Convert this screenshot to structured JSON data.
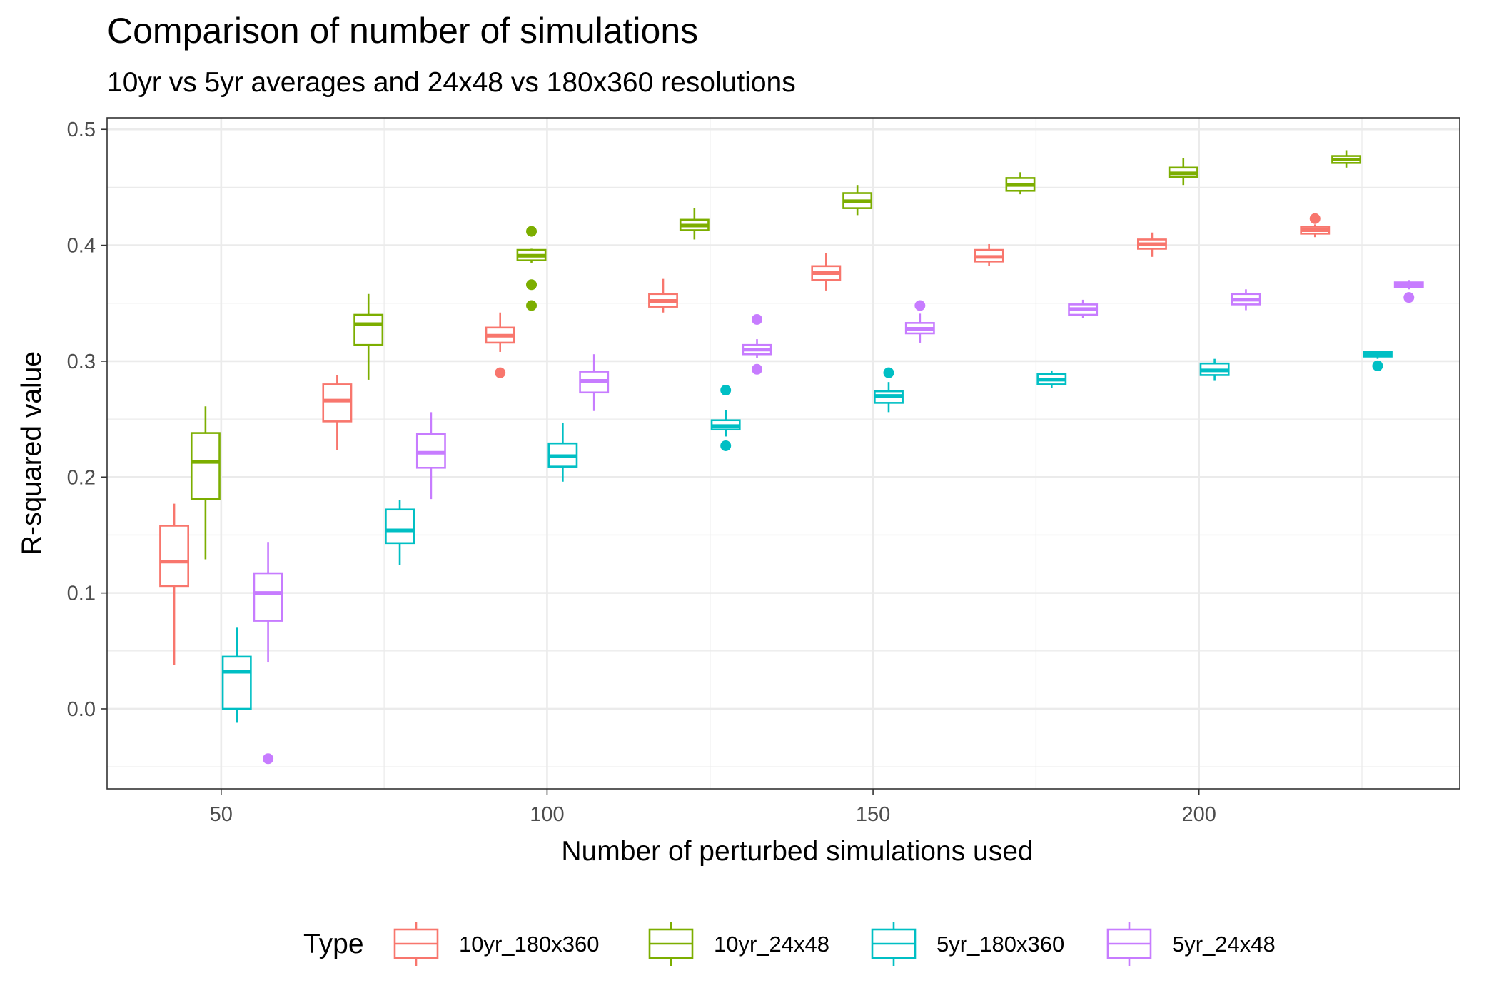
{
  "chart_data": {
    "type": "boxplot",
    "title": "Comparison of number of simulations",
    "subtitle": "10yr vs 5yr averages and 24x48 vs 180x360 resolutions",
    "xlabel": "Number of perturbed simulations used",
    "ylabel": "R-squared value",
    "xlim": [
      32.5,
      240
    ],
    "ylim": [
      -0.069,
      0.51
    ],
    "x_ticks": [
      50,
      100,
      150,
      200
    ],
    "x_tick_labels": [
      "50",
      "100",
      "150",
      "200"
    ],
    "y_ticks": [
      0.0,
      0.1,
      0.2,
      0.3,
      0.4,
      0.5
    ],
    "y_tick_labels": [
      "0.0",
      "0.1",
      "0.2",
      "0.3",
      "0.4",
      "0.5"
    ],
    "grid": true,
    "legend": {
      "title": "Type",
      "position": "bottom",
      "entries": [
        "10yr_180x360",
        "10yr_24x48",
        "5yr_180x360",
        "5yr_24x48"
      ]
    },
    "categories": [
      50,
      75,
      100,
      125,
      150,
      175,
      200,
      225
    ],
    "dodge_offsets": [
      -7.2,
      -2.4,
      2.4,
      7.2
    ],
    "box_width": 4.3,
    "series": [
      {
        "name": "10yr_180x360",
        "color": "#F8766D",
        "boxes": [
          {
            "x": 50,
            "lower": 0.038,
            "q1": 0.106,
            "median": 0.127,
            "q3": 0.158,
            "upper": 0.177,
            "outliers": []
          },
          {
            "x": 75,
            "lower": 0.223,
            "q1": 0.248,
            "median": 0.266,
            "q3": 0.28,
            "upper": 0.288,
            "outliers": []
          },
          {
            "x": 100,
            "lower": 0.308,
            "q1": 0.316,
            "median": 0.322,
            "q3": 0.329,
            "upper": 0.342,
            "outliers": [
              0.29
            ]
          },
          {
            "x": 125,
            "lower": 0.342,
            "q1": 0.347,
            "median": 0.352,
            "q3": 0.358,
            "upper": 0.371,
            "outliers": []
          },
          {
            "x": 150,
            "lower": 0.361,
            "q1": 0.37,
            "median": 0.376,
            "q3": 0.382,
            "upper": 0.393,
            "outliers": []
          },
          {
            "x": 175,
            "lower": 0.382,
            "q1": 0.386,
            "median": 0.39,
            "q3": 0.396,
            "upper": 0.401,
            "outliers": []
          },
          {
            "x": 200,
            "lower": 0.39,
            "q1": 0.397,
            "median": 0.401,
            "q3": 0.405,
            "upper": 0.411,
            "outliers": []
          },
          {
            "x": 225,
            "lower": 0.407,
            "q1": 0.41,
            "median": 0.413,
            "q3": 0.416,
            "upper": 0.418,
            "outliers": [
              0.423
            ]
          }
        ]
      },
      {
        "name": "10yr_24x48",
        "color": "#7CAE00",
        "boxes": [
          {
            "x": 50,
            "lower": 0.129,
            "q1": 0.181,
            "median": 0.213,
            "q3": 0.238,
            "upper": 0.261,
            "outliers": []
          },
          {
            "x": 75,
            "lower": 0.284,
            "q1": 0.314,
            "median": 0.332,
            "q3": 0.34,
            "upper": 0.358,
            "outliers": []
          },
          {
            "x": 100,
            "lower": 0.385,
            "q1": 0.387,
            "median": 0.391,
            "q3": 0.396,
            "upper": 0.397,
            "outliers": [
              0.412,
              0.366,
              0.348
            ]
          },
          {
            "x": 125,
            "lower": 0.405,
            "q1": 0.413,
            "median": 0.417,
            "q3": 0.422,
            "upper": 0.432,
            "outliers": []
          },
          {
            "x": 150,
            "lower": 0.426,
            "q1": 0.432,
            "median": 0.438,
            "q3": 0.445,
            "upper": 0.452,
            "outliers": []
          },
          {
            "x": 175,
            "lower": 0.444,
            "q1": 0.447,
            "median": 0.452,
            "q3": 0.458,
            "upper": 0.463,
            "outliers": []
          },
          {
            "x": 200,
            "lower": 0.452,
            "q1": 0.459,
            "median": 0.462,
            "q3": 0.467,
            "upper": 0.475,
            "outliers": []
          },
          {
            "x": 225,
            "lower": 0.467,
            "q1": 0.471,
            "median": 0.474,
            "q3": 0.477,
            "upper": 0.482,
            "outliers": []
          }
        ]
      },
      {
        "name": "5yr_180x360",
        "color": "#00BFC4",
        "boxes": [
          {
            "x": 50,
            "lower": -0.012,
            "q1": 0.0,
            "median": 0.032,
            "q3": 0.045,
            "upper": 0.07,
            "outliers": []
          },
          {
            "x": 75,
            "lower": 0.124,
            "q1": 0.143,
            "median": 0.154,
            "q3": 0.172,
            "upper": 0.18,
            "outliers": []
          },
          {
            "x": 100,
            "lower": 0.196,
            "q1": 0.209,
            "median": 0.218,
            "q3": 0.229,
            "upper": 0.247,
            "outliers": []
          },
          {
            "x": 125,
            "lower": 0.235,
            "q1": 0.241,
            "median": 0.244,
            "q3": 0.249,
            "upper": 0.258,
            "outliers": [
              0.275,
              0.227
            ]
          },
          {
            "x": 150,
            "lower": 0.256,
            "q1": 0.264,
            "median": 0.27,
            "q3": 0.274,
            "upper": 0.282,
            "outliers": [
              0.29
            ]
          },
          {
            "x": 175,
            "lower": 0.277,
            "q1": 0.28,
            "median": 0.284,
            "q3": 0.289,
            "upper": 0.292,
            "outliers": []
          },
          {
            "x": 200,
            "lower": 0.283,
            "q1": 0.288,
            "median": 0.292,
            "q3": 0.298,
            "upper": 0.302,
            "outliers": []
          },
          {
            "x": 225,
            "lower": 0.302,
            "q1": 0.304,
            "median": 0.306,
            "q3": 0.308,
            "upper": 0.309,
            "outliers": [
              0.296
            ]
          }
        ]
      },
      {
        "name": "5yr_24x48",
        "color": "#C77CFF",
        "boxes": [
          {
            "x": 50,
            "lower": 0.04,
            "q1": 0.076,
            "median": 0.1,
            "q3": 0.117,
            "upper": 0.144,
            "outliers": [
              -0.043
            ]
          },
          {
            "x": 75,
            "lower": 0.181,
            "q1": 0.208,
            "median": 0.221,
            "q3": 0.237,
            "upper": 0.256,
            "outliers": []
          },
          {
            "x": 100,
            "lower": 0.257,
            "q1": 0.273,
            "median": 0.283,
            "q3": 0.291,
            "upper": 0.306,
            "outliers": []
          },
          {
            "x": 125,
            "lower": 0.303,
            "q1": 0.306,
            "median": 0.31,
            "q3": 0.314,
            "upper": 0.319,
            "outliers": [
              0.336,
              0.293
            ]
          },
          {
            "x": 150,
            "lower": 0.316,
            "q1": 0.324,
            "median": 0.328,
            "q3": 0.333,
            "upper": 0.341,
            "outliers": [
              0.348
            ]
          },
          {
            "x": 175,
            "lower": 0.337,
            "q1": 0.34,
            "median": 0.345,
            "q3": 0.349,
            "upper": 0.353,
            "outliers": []
          },
          {
            "x": 200,
            "lower": 0.344,
            "q1": 0.349,
            "median": 0.353,
            "q3": 0.358,
            "upper": 0.362,
            "outliers": []
          },
          {
            "x": 225,
            "lower": 0.362,
            "q1": 0.364,
            "median": 0.366,
            "q3": 0.368,
            "upper": 0.37,
            "outliers": [
              0.355
            ]
          }
        ]
      }
    ]
  }
}
